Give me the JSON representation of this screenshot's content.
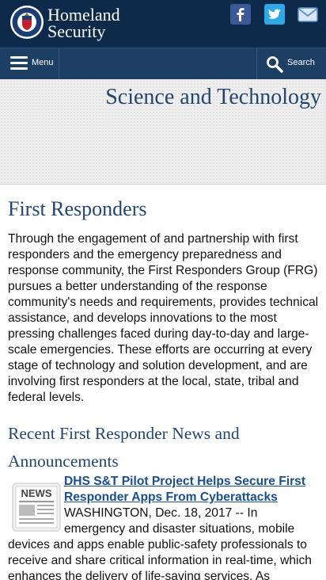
{
  "header": {
    "brand_line1": "Homeland",
    "brand_line2": "Security",
    "seal_icon": "dhs-seal-icon",
    "social": [
      {
        "name": "facebook-icon",
        "color": "#3b5998"
      },
      {
        "name": "twitter-icon",
        "color": "#2fa8e6"
      },
      {
        "name": "email-icon",
        "color": "#5a8fc8"
      }
    ]
  },
  "nav": {
    "menu_label": "Menu",
    "search_label": "Search"
  },
  "banner": {
    "title": "Science and Technology"
  },
  "page": {
    "title": "First Responders",
    "intro": "Through the engagement of and partnership with first responders and the emergency preparedness and response community, the First Responders Group (FRG) pursues a better understanding of the response community's needs and requirements, provides technical assistance, and develops innovations to the most pressing challenges faced during day-to-day and large-scale emergencies. These efforts are occurring at every stage of technology and solution development, and are involving first responders at the local, state, tribal and federal levels."
  },
  "news": {
    "heading": "Recent First Responder News and Announcements",
    "icon_label": "NEWS",
    "articles": [
      {
        "title": "DHS S&T Pilot Project Helps Secure First Responder Apps From Cyberattacks",
        "summary": "WASHINGTON, Dec. 18, 2017 -- In emergency and disaster situations, mobile devices and apps enable public-safety professionals to receive and share critical information in real-time, which enhances the delivery of life-saving services. As"
      }
    ]
  },
  "colors": {
    "header_bg": "#0e2a4a",
    "nav_bg": "#1d3f63",
    "heading": "#24466e",
    "link": "#1a4e8c"
  }
}
